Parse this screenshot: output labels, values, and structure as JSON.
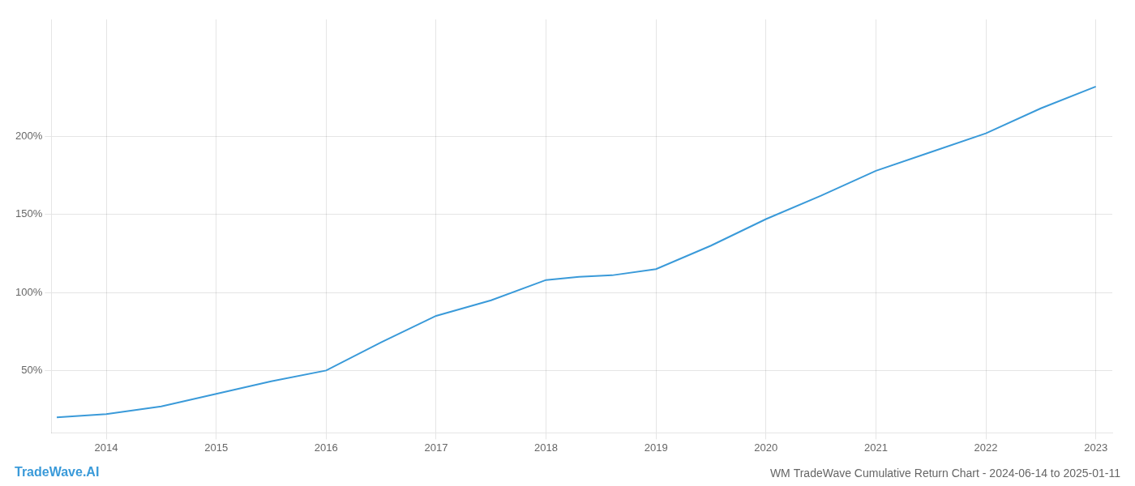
{
  "chart_data": {
    "type": "line",
    "title": "WM TradeWave Cumulative Return Chart - 2024-06-14 to 2025-01-11",
    "annotations": [
      "TradeWave.AI"
    ],
    "x": [
      2013.55,
      2014.0,
      2014.5,
      2015.0,
      2015.5,
      2016.0,
      2016.5,
      2017.0,
      2017.5,
      2018.0,
      2018.3,
      2018.6,
      2019.0,
      2019.5,
      2020.0,
      2020.5,
      2021.0,
      2021.5,
      2022.0,
      2022.5,
      2023.0
    ],
    "values": [
      20,
      22,
      27,
      35,
      43,
      50,
      68,
      85,
      95,
      108,
      110,
      111,
      115,
      130,
      147,
      162,
      178,
      190,
      202,
      218,
      232
    ],
    "color": "#3a9ad9",
    "xlim": [
      2013.5,
      2023.15
    ],
    "ylim": [
      10,
      275
    ],
    "xticks": [
      2014,
      2015,
      2016,
      2017,
      2018,
      2019,
      2020,
      2021,
      2022,
      2023
    ],
    "yticks": [
      {
        "value": 50,
        "label": "50%"
      },
      {
        "value": 100,
        "label": "100%"
      },
      {
        "value": 150,
        "label": "150%"
      },
      {
        "value": 200,
        "label": "200%"
      }
    ],
    "grid": true
  }
}
